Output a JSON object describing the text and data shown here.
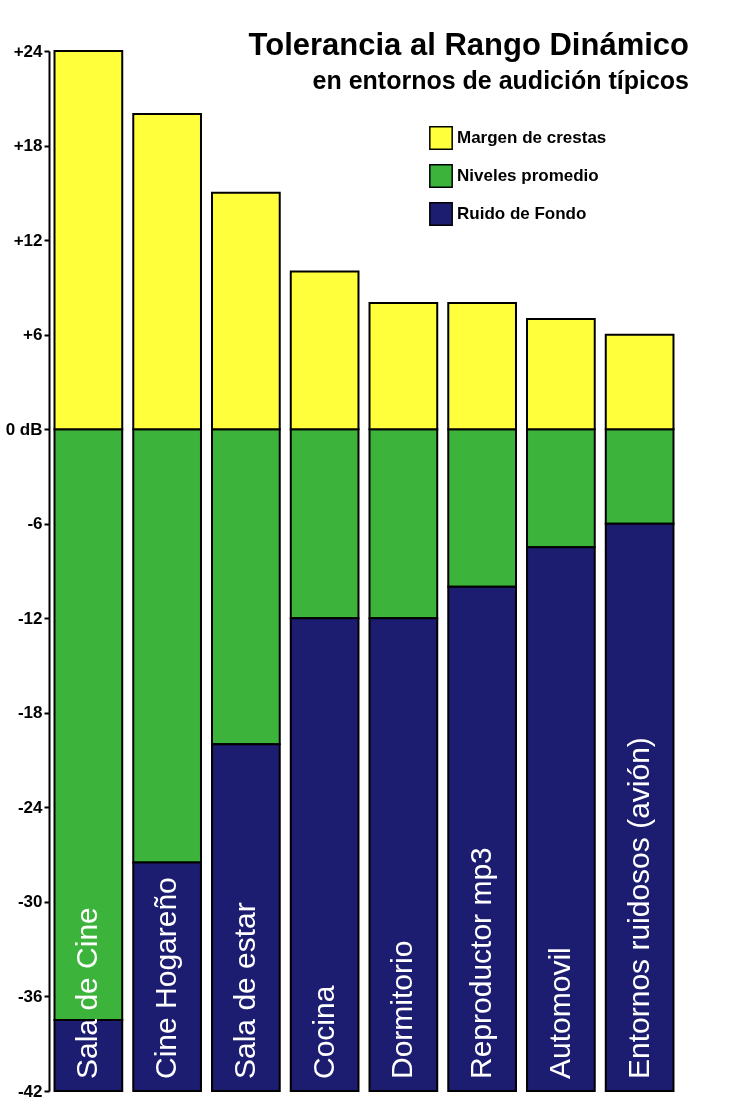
{
  "chart_data": {
    "type": "bar",
    "title": "Tolerancia al Rango Dinámico",
    "subtitle": "en entornos de audición típicos",
    "categories": [
      "Sala de Cine",
      "Cine Hogareño",
      "Sala de estar",
      "Cocina",
      "Dormitorio",
      "Reproductor mp3",
      "Automovil",
      "Entornos ruidosos (avión)"
    ],
    "stacked": true,
    "series": [
      {
        "name": "Niveles promedio",
        "color": "#3cb43c",
        "values": [
          -37.5,
          -27.5,
          -20,
          -12,
          -12,
          -10,
          -7.5,
          -6
        ]
      },
      {
        "name": "Ruido de Fondo",
        "color": "#1c1c70",
        "values": [
          -4.5,
          -14.5,
          -22,
          -30,
          -30,
          -32,
          -34.5,
          -36
        ]
      },
      {
        "name": "Margen de crestas",
        "color": "#ffff3c",
        "values": [
          24,
          20,
          15,
          10,
          8,
          8,
          7,
          6
        ]
      }
    ],
    "ylim": [
      -42,
      24
    ],
    "yticks": [
      -42,
      -36,
      -30,
      -24,
      -18,
      -12,
      -6,
      {
        "value": 0,
        "label": "0 dB"
      },
      {
        "value": 6,
        "label": "+6"
      },
      {
        "value": 12,
        "label": "+12"
      },
      {
        "value": 18,
        "label": "+18"
      },
      {
        "value": 24,
        "label": "+24"
      }
    ],
    "grid": false,
    "legend": "top right",
    "tick_labels": "y"
  }
}
